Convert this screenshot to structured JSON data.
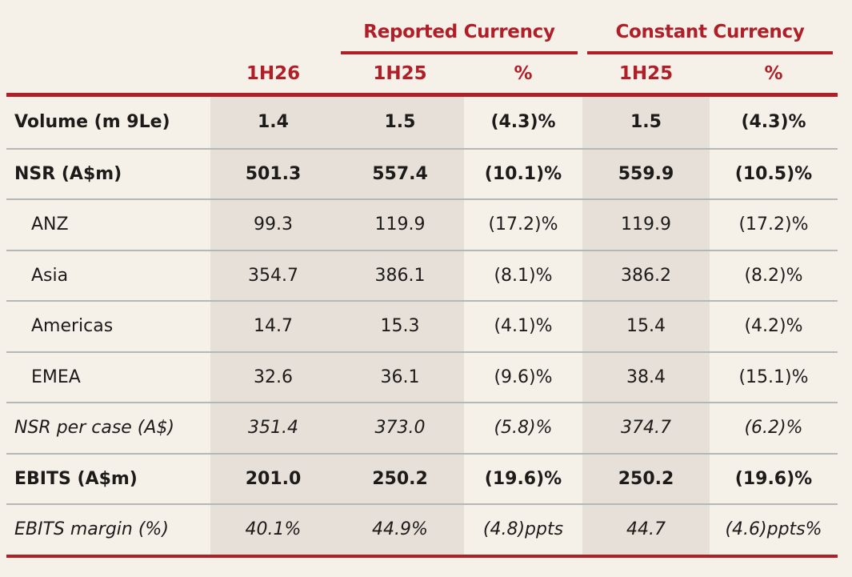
{
  "colors": {
    "accent_red": "#b01f28",
    "background_cream": "#f5f1e9",
    "column_shade": "#e6e0d8",
    "row_separator": "#b5b8b8",
    "text": "#1d1b1a"
  },
  "header": {
    "reported_group": "Reported Currency",
    "constant_group": "Constant Currency",
    "columns": [
      "1H26",
      "1H25",
      "%",
      "1H25",
      "%"
    ]
  },
  "rows": [
    {
      "label": "Volume (m 9Le)",
      "style": "bold",
      "values": [
        "1.4",
        "1.5",
        "(4.3)%",
        "1.5",
        "(4.3)%"
      ]
    },
    {
      "label": "NSR (A$m)",
      "style": "bold",
      "values": [
        "501.3",
        "557.4",
        "(10.1)%",
        "559.9",
        "(10.5)%"
      ]
    },
    {
      "label": "ANZ",
      "style": "indent",
      "values": [
        "99.3",
        "119.9",
        "(17.2)%",
        "119.9",
        "(17.2)%"
      ]
    },
    {
      "label": "Asia",
      "style": "indent",
      "values": [
        "354.7",
        "386.1",
        "(8.1)%",
        "386.2",
        "(8.2)%"
      ]
    },
    {
      "label": "Americas",
      "style": "indent",
      "values": [
        "14.7",
        "15.3",
        "(4.1)%",
        "15.4",
        "(4.2)%"
      ]
    },
    {
      "label": "EMEA",
      "style": "indent",
      "values": [
        "32.6",
        "36.1",
        "(9.6)%",
        "38.4",
        "(15.1)%"
      ]
    },
    {
      "label": "NSR per case (A$)",
      "style": "italic",
      "values": [
        "351.4",
        "373.0",
        "(5.8)%",
        "374.7",
        "(6.2)%"
      ]
    },
    {
      "label": "EBITS (A$m)",
      "style": "bold",
      "values": [
        "201.0",
        "250.2",
        "(19.6)%",
        "250.2",
        "(19.6)%"
      ]
    },
    {
      "label": "EBITS margin (%)",
      "style": "italic",
      "values": [
        "40.1%",
        "44.9%",
        "(4.8)ppts",
        "44.7",
        "(4.6)ppts%"
      ]
    }
  ]
}
